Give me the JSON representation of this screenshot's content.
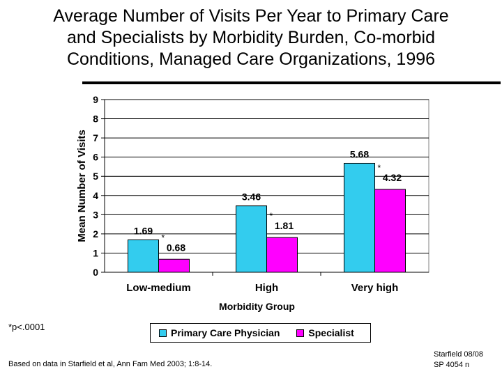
{
  "title_lines": [
    "Average Number of Visits Per Year to Primary Care",
    "and Specialists by Morbidity Burden, Co-morbid",
    "Conditions, Managed Care Organizations, 1996"
  ],
  "footnote": "*p<.0001",
  "source": "Based on data in Starfield et al, Ann Fam Med 2003; 1:8-14.",
  "credit": [
    "Starfield 08/08",
    "SP 4054 n"
  ],
  "colors": {
    "primary": "#33ccee",
    "specialist": "#ff00ff",
    "plot_bg": "#ffffff",
    "grid": "#000000"
  },
  "chart_data": {
    "type": "bar",
    "categories": [
      "Low-medium",
      "High",
      "Very high"
    ],
    "series": [
      {
        "name": "Primary Care Physician",
        "values": [
          1.69,
          3.46,
          5.68
        ],
        "labels": [
          "1.69",
          "3.46",
          "5.68"
        ]
      },
      {
        "name": "Specialist",
        "values": [
          0.68,
          1.81,
          4.32
        ],
        "labels": [
          "0.68",
          "1.81",
          "4.32"
        ]
      }
    ],
    "significance_marker": "*",
    "xlabel": "Morbidity Group",
    "ylabel": "Mean Number of Visits",
    "ylim": [
      0,
      9
    ],
    "yticks": [
      "0",
      "1",
      "2",
      "3",
      "4",
      "5",
      "6",
      "7",
      "8",
      "9"
    ],
    "grid": true,
    "legend_position": "bottom"
  }
}
